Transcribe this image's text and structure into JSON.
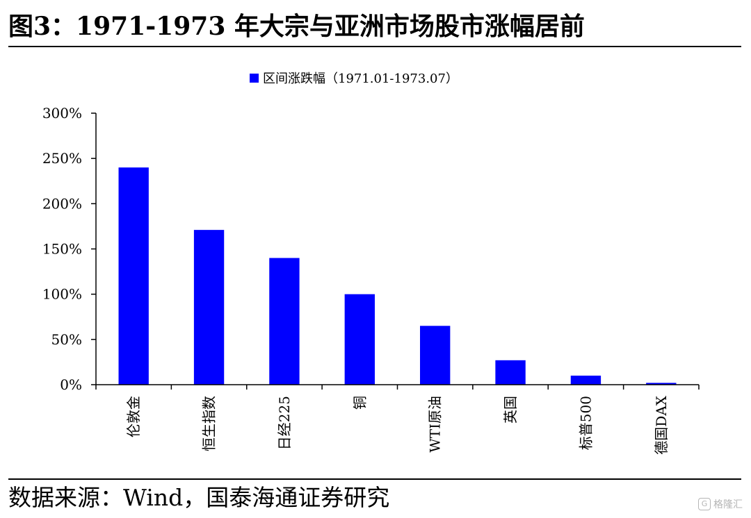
{
  "header": {
    "title": "图3：1971-1973 年大宗与亚洲市场股市涨幅居前"
  },
  "footer": {
    "source": "数据来源：Wind，国泰海通证券研究",
    "watermark": "格隆汇",
    "watermark_icon": "G"
  },
  "chart_data": {
    "type": "bar",
    "legend": {
      "position": "top-center",
      "color": "#0000FF"
    },
    "categories": [
      "伦敦金",
      "恒生指数",
      "日经225",
      "铜",
      "WTI原油",
      "英国",
      "标普500",
      "德国DAX"
    ],
    "series": [
      {
        "name": "区间涨跌幅（1971.01-1973.07）",
        "color": "#0000FF",
        "values": [
          240,
          171,
          140,
          100,
          65,
          27,
          10,
          2
        ]
      }
    ],
    "ylim": [
      0,
      300
    ],
    "yticks": [
      0,
      50,
      100,
      150,
      200,
      250,
      300
    ],
    "ytick_labels": [
      "0%",
      "50%",
      "100%",
      "150%",
      "200%",
      "250%",
      "300%"
    ],
    "grid": false,
    "xlabel": "",
    "ylabel": ""
  }
}
